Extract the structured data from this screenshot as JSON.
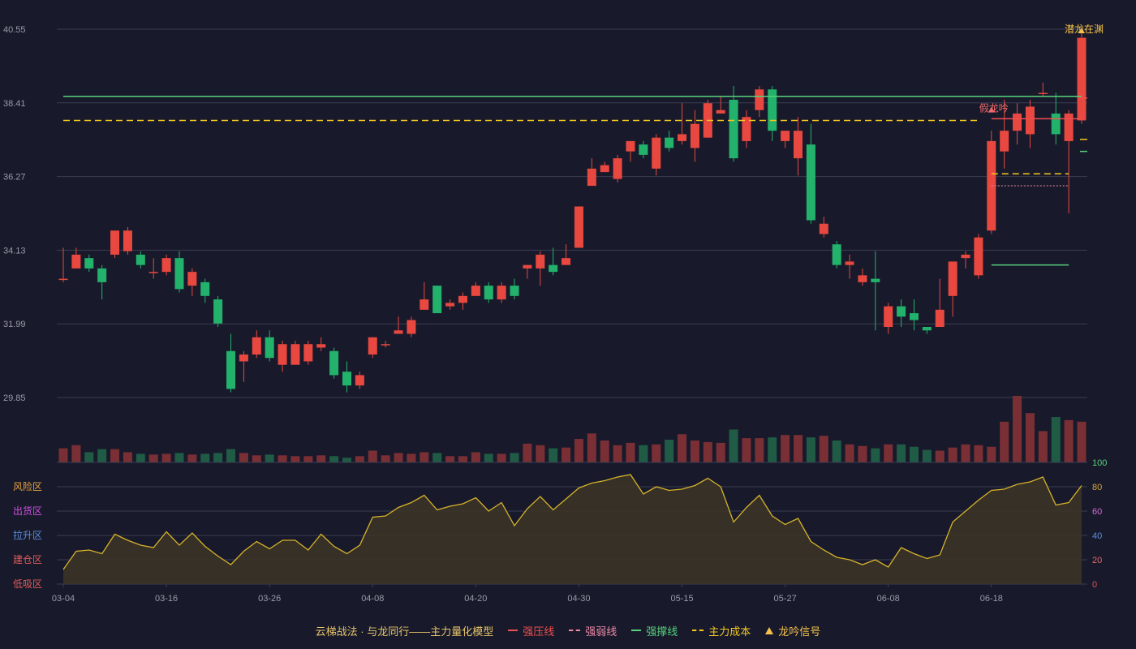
{
  "chart_data": [
    {
      "type": "candlestick",
      "name": "price",
      "yticks": [
        "40.55",
        "38.41",
        "36.27",
        "34.13",
        "31.99",
        "29.85"
      ],
      "ylim": [
        29.85,
        40.55
      ],
      "xticks": [
        {
          "index": 0,
          "label": "03-04"
        },
        {
          "index": 8,
          "label": "03-16"
        },
        {
          "index": 16,
          "label": "03-26"
        },
        {
          "index": 24,
          "label": "04-08"
        },
        {
          "index": 32,
          "label": "04-20"
        },
        {
          "index": 40,
          "label": "04-30"
        },
        {
          "index": 48,
          "label": "05-15"
        },
        {
          "index": 56,
          "label": "05-27"
        },
        {
          "index": 64,
          "label": "06-08"
        },
        {
          "index": 72,
          "label": "06-18"
        }
      ],
      "ohlc": [
        [
          33.3,
          33.3,
          34.2,
          33.2
        ],
        [
          33.6,
          34.0,
          34.2,
          33.6
        ],
        [
          33.9,
          33.6,
          34.0,
          33.5
        ],
        [
          33.6,
          33.2,
          33.7,
          32.7
        ],
        [
          34.0,
          34.7,
          34.7,
          33.9
        ],
        [
          34.1,
          34.7,
          34.8,
          34.0
        ],
        [
          34.0,
          33.7,
          34.1,
          33.6
        ],
        [
          33.5,
          33.5,
          33.9,
          33.3
        ],
        [
          33.5,
          33.9,
          34.0,
          33.4
        ],
        [
          33.9,
          33.0,
          34.1,
          32.9
        ],
        [
          33.1,
          33.5,
          33.6,
          32.8
        ],
        [
          33.2,
          32.8,
          33.3,
          32.6
        ],
        [
          32.7,
          32.0,
          32.8,
          31.9
        ],
        [
          31.2,
          30.1,
          31.7,
          30.0
        ],
        [
          30.9,
          31.1,
          31.2,
          30.3
        ],
        [
          31.1,
          31.6,
          31.8,
          31.0
        ],
        [
          31.6,
          31.0,
          31.8,
          30.9
        ],
        [
          30.8,
          31.4,
          31.5,
          30.6
        ],
        [
          30.8,
          31.4,
          31.5,
          30.8
        ],
        [
          30.9,
          31.4,
          31.5,
          30.8
        ],
        [
          31.3,
          31.4,
          31.6,
          31.2
        ],
        [
          31.2,
          30.5,
          31.3,
          30.4
        ],
        [
          30.6,
          30.2,
          30.9,
          30.0
        ],
        [
          30.2,
          30.5,
          30.6,
          30.1
        ],
        [
          31.1,
          31.6,
          31.6,
          31.0
        ],
        [
          31.4,
          31.4,
          31.5,
          31.3
        ],
        [
          31.7,
          31.8,
          32.2,
          31.7
        ],
        [
          31.7,
          32.1,
          32.2,
          31.6
        ],
        [
          32.4,
          32.7,
          33.2,
          32.4
        ],
        [
          33.1,
          32.3,
          33.1,
          32.3
        ],
        [
          32.5,
          32.6,
          32.7,
          32.4
        ],
        [
          32.6,
          32.8,
          32.9,
          32.4
        ],
        [
          32.8,
          33.1,
          33.2,
          32.8
        ],
        [
          33.1,
          32.7,
          33.2,
          32.6
        ],
        [
          32.7,
          33.1,
          33.2,
          32.6
        ],
        [
          33.1,
          32.8,
          33.3,
          32.7
        ],
        [
          33.6,
          33.7,
          33.7,
          33.3
        ],
        [
          33.6,
          34.0,
          34.1,
          33.1
        ],
        [
          33.7,
          33.5,
          34.2,
          33.4
        ],
        [
          33.7,
          33.9,
          34.3,
          33.7
        ],
        [
          34.2,
          35.4,
          35.4,
          34.2
        ],
        [
          36.0,
          36.5,
          36.8,
          36.0
        ],
        [
          36.4,
          36.6,
          36.7,
          36.4
        ],
        [
          36.2,
          36.8,
          36.9,
          36.1
        ],
        [
          37.0,
          37.3,
          37.3,
          36.7
        ],
        [
          37.2,
          36.9,
          37.3,
          36.8
        ],
        [
          36.5,
          37.4,
          37.5,
          36.3
        ],
        [
          37.4,
          37.1,
          37.6,
          37.0
        ],
        [
          37.3,
          37.5,
          38.4,
          37.2
        ],
        [
          37.1,
          37.8,
          38.2,
          36.7
        ],
        [
          37.4,
          38.4,
          38.5,
          37.4
        ],
        [
          38.1,
          38.2,
          38.6,
          38.1
        ],
        [
          38.5,
          36.8,
          38.9,
          36.7
        ],
        [
          37.3,
          38.0,
          38.2,
          37.1
        ],
        [
          38.2,
          38.8,
          38.9,
          38.0
        ],
        [
          38.8,
          37.6,
          38.9,
          37.3
        ],
        [
          37.3,
          37.6,
          37.6,
          37.1
        ],
        [
          36.8,
          37.6,
          38.0,
          36.3
        ],
        [
          37.2,
          35.0,
          37.8,
          34.9
        ],
        [
          34.6,
          34.9,
          35.1,
          34.5
        ],
        [
          34.3,
          33.7,
          34.4,
          33.6
        ],
        [
          33.7,
          33.8,
          34.0,
          33.3
        ],
        [
          33.2,
          33.4,
          33.6,
          33.1
        ],
        [
          33.3,
          33.2,
          34.1,
          31.8
        ],
        [
          31.9,
          32.5,
          32.6,
          31.7
        ],
        [
          32.5,
          32.2,
          32.7,
          31.9
        ],
        [
          32.3,
          32.1,
          32.7,
          31.8
        ],
        [
          31.9,
          31.8,
          31.9,
          31.7
        ],
        [
          31.9,
          32.4,
          33.3,
          31.9
        ],
        [
          32.8,
          33.8,
          33.8,
          32.2
        ],
        [
          33.9,
          34.0,
          34.1,
          33.6
        ],
        [
          33.4,
          34.5,
          34.6,
          33.3
        ],
        [
          34.7,
          37.3,
          37.6,
          34.6
        ],
        [
          37.0,
          37.6,
          38.5,
          36.5
        ],
        [
          37.6,
          38.1,
          38.4,
          37.2
        ],
        [
          37.5,
          38.3,
          38.5,
          37.1
        ],
        [
          38.7,
          38.7,
          39.0,
          38.6
        ],
        [
          38.1,
          37.5,
          38.7,
          37.2
        ],
        [
          37.3,
          38.1,
          38.2,
          35.2
        ],
        [
          37.9,
          40.3,
          40.5,
          37.8
        ]
      ],
      "volume": [
        18,
        22,
        13,
        17,
        17,
        13,
        11,
        10,
        11,
        12,
        10,
        11,
        12,
        17,
        12,
        9,
        10,
        9,
        8,
        8,
        9,
        8,
        6,
        8,
        15,
        9,
        12,
        11,
        13,
        12,
        8,
        8,
        13,
        11,
        11,
        12,
        24,
        22,
        18,
        19,
        30,
        37,
        28,
        22,
        25,
        22,
        23,
        29,
        36,
        28,
        26,
        25,
        42,
        31,
        31,
        32,
        35,
        35,
        32,
        34,
        28,
        23,
        21,
        18,
        23,
        23,
        20,
        16,
        15,
        19,
        23,
        22,
        20,
        52,
        85,
        63,
        40,
        58,
        54,
        52
      ],
      "volume_max": 85,
      "ref_lines": [
        {
          "name": "强撑线",
          "value": 38.6,
          "color": "#57d17b",
          "style": "solid",
          "from": 0,
          "to": 79
        },
        {
          "name": "主力成本",
          "value": 37.9,
          "color": "#f4c71f",
          "style": "dash",
          "from": 0,
          "to": 71
        },
        {
          "name": "强压线",
          "value": 37.95,
          "color": "#ef4f4f",
          "style": "solid",
          "from": 72,
          "to": 79
        },
        {
          "name": "强撑线",
          "value": 33.7,
          "color": "#57d17b",
          "style": "solid",
          "from": 72,
          "to": 78
        },
        {
          "name": "主力成本",
          "value": 36.35,
          "color": "#f4c71f",
          "style": "dash",
          "from": 72,
          "to": 78
        },
        {
          "name": "强弱线",
          "value": 36.0,
          "color": "#f08aa8",
          "style": "dot",
          "from": 72,
          "to": 78
        }
      ],
      "right_stubs": [
        {
          "value": 37.35,
          "color": "#f4c71f"
        },
        {
          "value": 37.0,
          "color": "#57d17b"
        },
        {
          "value": 38.55,
          "color": "#ef4f4f"
        }
      ],
      "annotations": [
        {
          "text": "假龙吟",
          "index": 72,
          "value": 38.25,
          "color": "#ef6a6a"
        },
        {
          "text": "潜龙在渊",
          "index": 79,
          "value": 40.55,
          "color": "#f4c14a"
        }
      ]
    },
    {
      "type": "area",
      "name": "risk",
      "ylim": [
        0,
        100
      ],
      "yticks": [
        {
          "value": 100,
          "label": "100",
          "color": "#57d17b"
        },
        {
          "value": 80,
          "label": "80",
          "color": "#d8a43a"
        },
        {
          "value": 60,
          "label": "60",
          "color": "#d06bd7"
        },
        {
          "value": 40,
          "label": "40",
          "color": "#5a8de0"
        },
        {
          "value": 20,
          "label": "20",
          "color": "#e06a6a"
        },
        {
          "value": 0,
          "label": "0",
          "color": "#e05050"
        }
      ],
      "zones": [
        {
          "label": "风险区",
          "value": 80,
          "color": "#e6a23c"
        },
        {
          "label": "出货区",
          "value": 60,
          "color": "#cf4fe0"
        },
        {
          "label": "拉升区",
          "value": 40,
          "color": "#5a8de0"
        },
        {
          "label": "建仓区",
          "value": 20,
          "color": "#e25a5a"
        },
        {
          "label": "低吸区",
          "value": 0,
          "color": "#e25a5a"
        }
      ],
      "values": [
        12,
        27,
        28,
        25,
        41,
        36,
        32,
        30,
        43,
        32,
        42,
        31,
        23,
        16,
        27,
        35,
        29,
        36,
        36,
        28,
        41,
        31,
        25,
        32,
        55,
        56,
        63,
        67,
        73,
        61,
        64,
        66,
        71,
        60,
        67,
        48,
        62,
        72,
        61,
        70,
        79,
        83,
        85,
        88,
        90,
        74,
        80,
        77,
        78,
        81,
        87,
        80,
        51,
        63,
        73,
        56,
        49,
        54,
        35,
        28,
        22,
        20,
        16,
        20,
        14,
        30,
        25,
        21,
        24,
        51,
        60,
        69,
        77,
        78,
        82,
        84,
        88,
        65,
        67,
        81
      ]
    }
  ],
  "legend": {
    "title": "云梯战法 · 与龙同行——主力量化模型",
    "items": [
      {
        "label": "强压线",
        "color": "#ef4f4f",
        "symbol": "solid"
      },
      {
        "label": "强弱线",
        "color": "#f08aa8",
        "symbol": "dash"
      },
      {
        "label": "强撑线",
        "color": "#57d17b",
        "symbol": "solid"
      },
      {
        "label": "主力成本",
        "color": "#f4c71f",
        "symbol": "dash"
      },
      {
        "label": "龙吟信号",
        "color": "#f4c14a",
        "symbol": "triangle"
      }
    ]
  },
  "colors": {
    "up": "#e8483f",
    "down": "#23b26c",
    "grid": "#3a3d52",
    "axis_text": "#9a9aa8",
    "risk_line": "#d6b22a",
    "risk_fill": "#3a3326"
  }
}
